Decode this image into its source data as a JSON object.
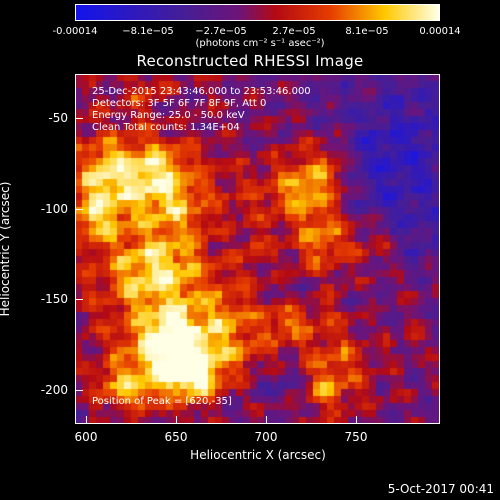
{
  "colorbar": {
    "ticks": [
      "-0.00014",
      "−8.1e−05",
      "−2.7e−05",
      "2.7e−05",
      "8.1e−05",
      "0.00014"
    ],
    "units": "(photons cm⁻² s⁻¹ asec⁻²)",
    "range": [
      -0.00014,
      0.00014
    ]
  },
  "title": "Reconstructed RHESSI Image",
  "annotations": {
    "time": "25-Dec-2015 23:43:46.000 to 23:53:46.000",
    "detectors": "Detectors: 3F 5F 6F 7F 8F 9F, Att 0",
    "energy": "Energy Range: 25.0 - 50.0 keV",
    "clean": "Clean      Total counts: 1.34E+04",
    "peak": "Position of Peak = [620,-35]"
  },
  "axes": {
    "xlabel": "Heliocentric X (arcsec)",
    "ylabel": "Heliocentric Y (arcsec)",
    "xticks": [
      "600",
      "650",
      "700",
      "750"
    ],
    "yticks": [
      "-50",
      "-100",
      "-150",
      "-200"
    ],
    "xrange": [
      592,
      784
    ],
    "yrange": [
      -220,
      -30
    ]
  },
  "footer": "5-Oct-2017 00:41"
}
